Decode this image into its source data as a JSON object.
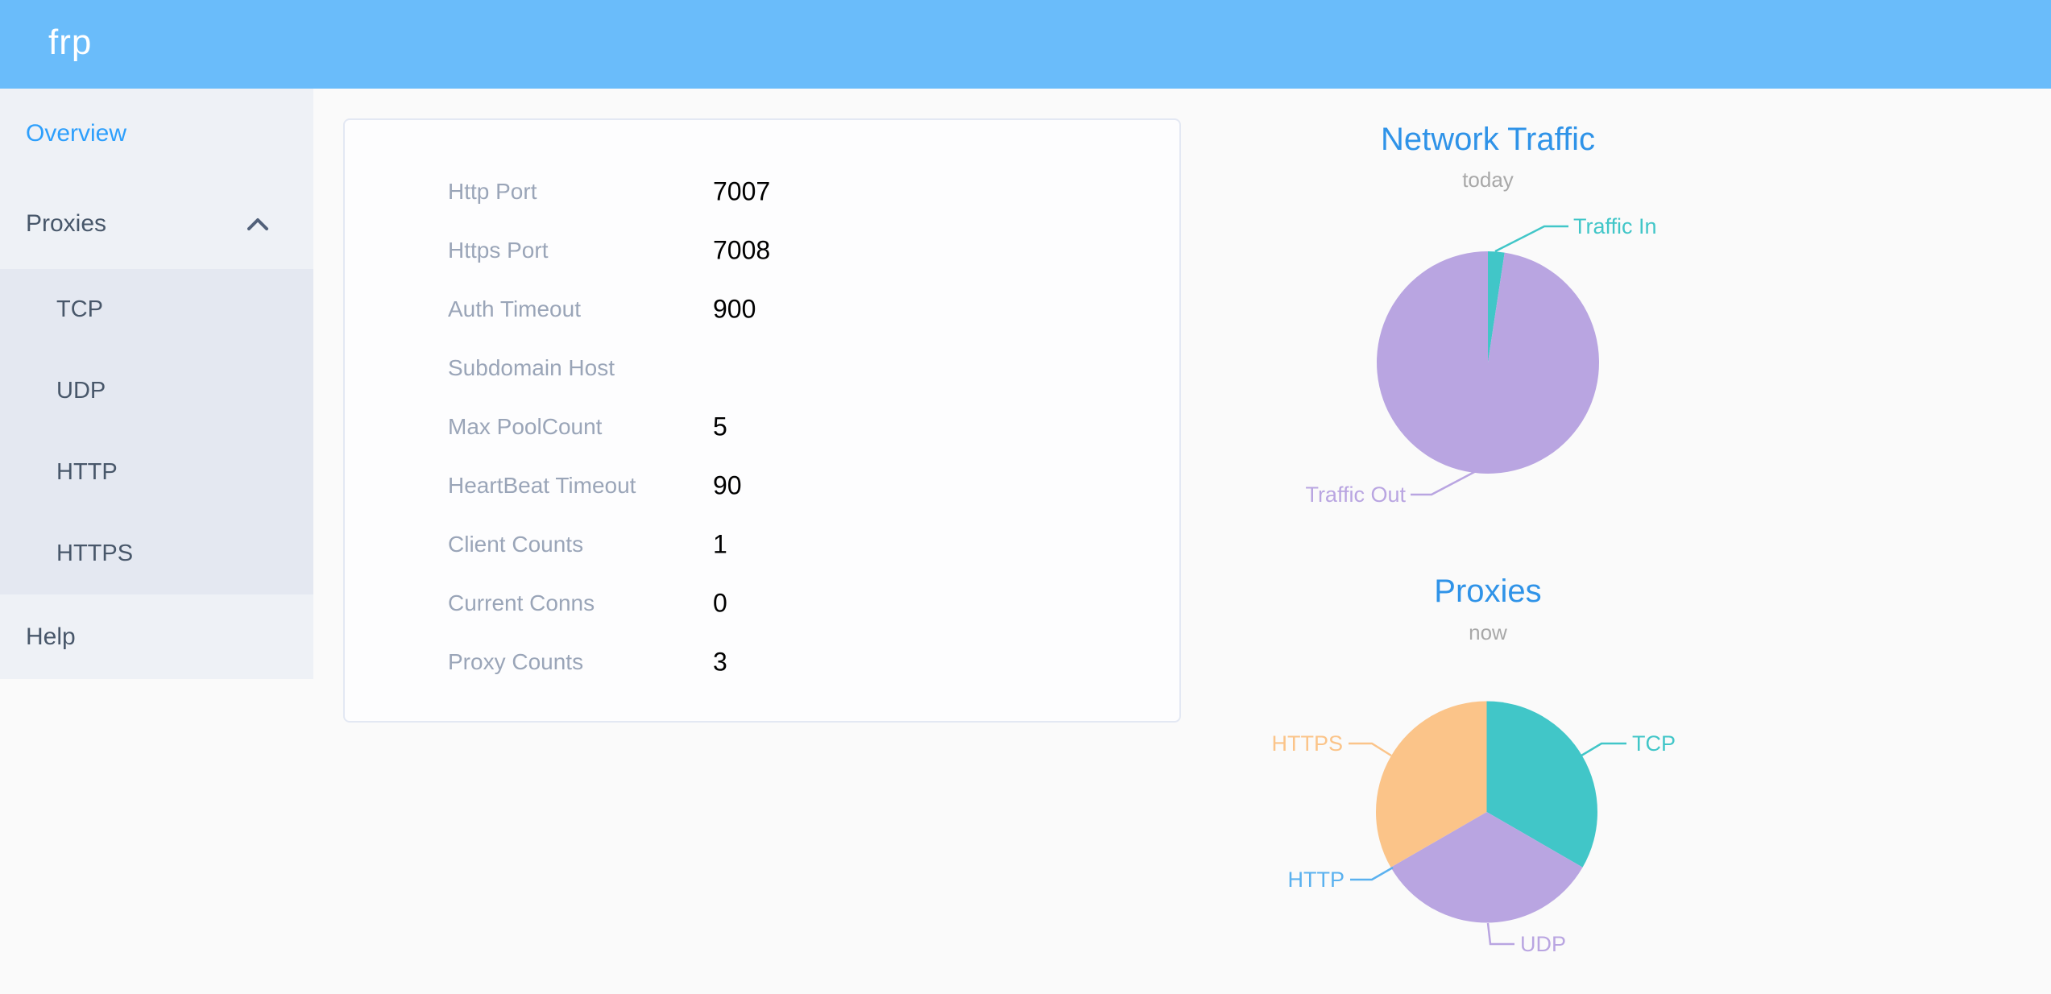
{
  "app": {
    "logo_text": "frp"
  },
  "sidebar": {
    "overview_label": "Overview",
    "proxies_label": "Proxies",
    "proxy_types": [
      "TCP",
      "UDP",
      "HTTP",
      "HTTPS"
    ],
    "help_label": "Help"
  },
  "server_config": {
    "rows": [
      {
        "label": "Http Port",
        "value": "7007"
      },
      {
        "label": "Https Port",
        "value": "7008"
      },
      {
        "label": "Auth Timeout",
        "value": "900"
      },
      {
        "label": "Subdomain Host",
        "value": ""
      },
      {
        "label": "Max PoolCount",
        "value": "5"
      },
      {
        "label": "HeartBeat Timeout",
        "value": "90"
      },
      {
        "label": "Client Counts",
        "value": "1"
      },
      {
        "label": "Current Conns",
        "value": "0"
      },
      {
        "label": "Proxy Counts",
        "value": "3"
      }
    ]
  },
  "chart_data": [
    {
      "type": "pie",
      "title": "Network Traffic",
      "subtitle": "today",
      "legend_position": "callout-labels",
      "segments": [
        {
          "label": "Traffic In",
          "value": 2.4,
          "color": "#41c6c8"
        },
        {
          "label": "Traffic Out",
          "value": 97.6,
          "color": "#b9a5e1"
        }
      ]
    },
    {
      "type": "pie",
      "title": "Proxies",
      "subtitle": "now",
      "legend_position": "callout-labels",
      "segments": [
        {
          "label": "TCP",
          "value": 1,
          "color": "#41c6c8"
        },
        {
          "label": "UDP",
          "value": 1,
          "color": "#b9a5e1"
        },
        {
          "label": "HTTP",
          "value": 0,
          "color": "#5ab1ef"
        },
        {
          "label": "HTTPS",
          "value": 1,
          "color": "#fbc489"
        }
      ]
    }
  ],
  "colors": {
    "header_bg": "#6abcfa",
    "sidebar_bg": "#eef1f6",
    "submenu_bg": "#e4e8f1",
    "menu_text": "#48576a",
    "menu_active": "#2d9ffc",
    "chart_title": "#2f93e8",
    "chart_subtitle": "#a8a8a8",
    "field_label": "#9aa5b8",
    "field_value": "#000000",
    "card_bg": "#fdfdfe",
    "card_border": "#e3e8f3",
    "page_bg": "#fafafa"
  }
}
